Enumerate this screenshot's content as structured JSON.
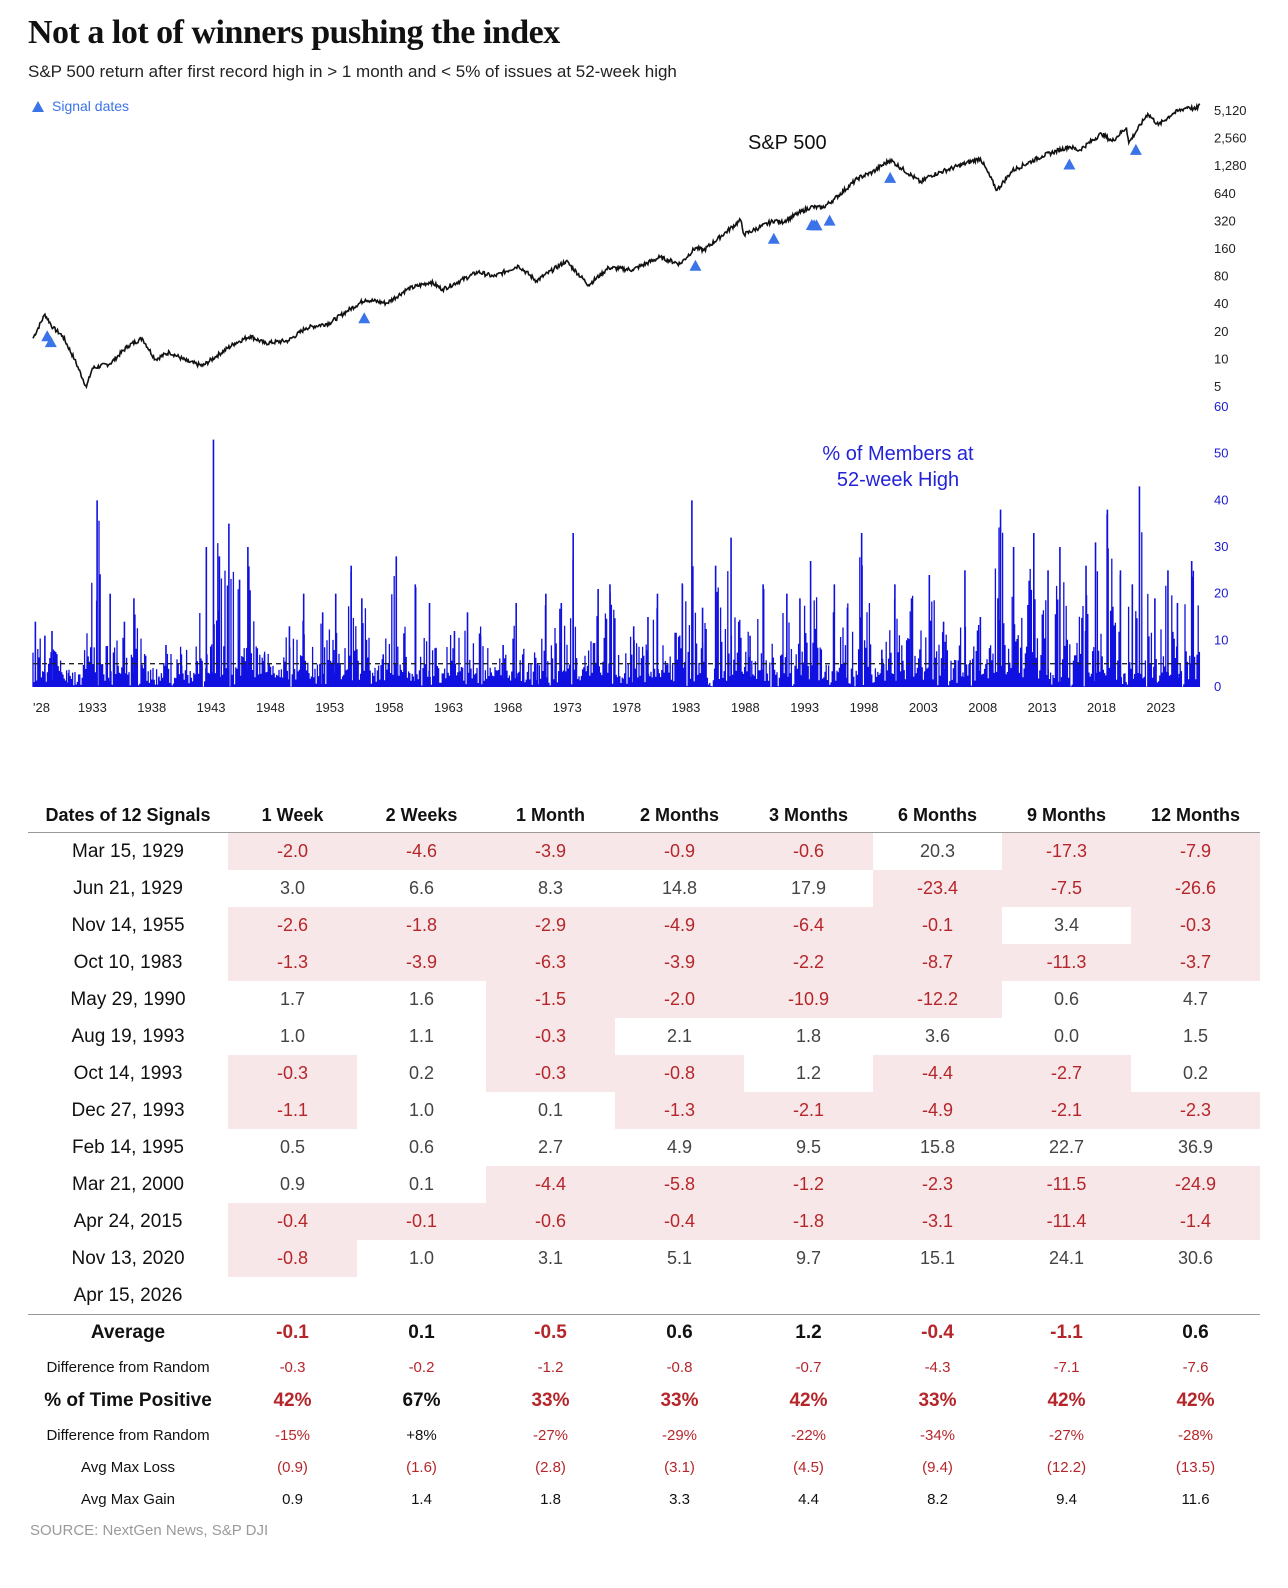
{
  "header": {
    "title": "Not a lot of winners pushing the index",
    "subtitle": "S&P 500 return after first record high in > 1 month and < 5% of issues at 52-week high",
    "legend_label": "Signal dates"
  },
  "colors": {
    "line": "#111111",
    "signal": "#3b73e8",
    "breadth": "#1010e0",
    "breadth_label": "#2323d9",
    "negative_text": "#b5262a",
    "negative_fill": "#f7e7e8"
  },
  "chart_data": [
    {
      "type": "line",
      "title": "S&P 500",
      "yscale": "log2",
      "y_ticks": [
        "5",
        "10",
        "20",
        "40",
        "80",
        "160",
        "320",
        "640",
        "1,280",
        "2,560",
        "5,120"
      ],
      "ylim": [
        5,
        5120
      ],
      "xlim": [
        1928,
        2026.3
      ],
      "series": [
        {
          "name": "S&P 500",
          "x": [
            1928.0,
            1929.0,
            1929.7,
            1930.5,
            1931.5,
            1932.5,
            1933.0,
            1934.5,
            1936.0,
            1937.2,
            1938.3,
            1939.5,
            1941.0,
            1942.3,
            1943.5,
            1945.0,
            1946.3,
            1947.5,
            1949.5,
            1951.0,
            1953.0,
            1954.5,
            1956.0,
            1957.8,
            1959.5,
            1961.5,
            1962.5,
            1965.5,
            1966.8,
            1968.9,
            1970.4,
            1972.9,
            1974.8,
            1976.5,
            1978.5,
            1980.8,
            1982.5,
            1983.8,
            1984.5,
            1987.6,
            1987.9,
            1990.5,
            1991.0,
            1993.5,
            1994.5,
            1995.5,
            1997.5,
            1998.7,
            2000.2,
            2002.8,
            2003.5,
            2007.8,
            2009.2,
            2010.5,
            2013.0,
            2015.3,
            2016.1,
            2018.0,
            2018.9,
            2020.1,
            2020.3,
            2021.9,
            2022.8,
            2024.0,
            2025.3,
            2025.9,
            2026.3
          ],
          "y": [
            17,
            31,
            22,
            18,
            10,
            5,
            8,
            9,
            14,
            17,
            10,
            12,
            9.5,
            8.5,
            11,
            15,
            18,
            15,
            16,
            22,
            25,
            34,
            45,
            41,
            58,
            70,
            58,
            90,
            80,
            105,
            72,
            118,
            65,
            100,
            95,
            130,
            110,
            165,
            155,
            330,
            230,
            330,
            310,
            460,
            450,
            560,
            950,
            1100,
            1500,
            850,
            1000,
            1560,
            700,
            1150,
            1650,
            2100,
            1900,
            2900,
            2400,
            3380,
            2300,
            4790,
            3600,
            4800,
            5700,
            5300,
            6000
          ]
        }
      ],
      "signal_dates": [
        1929.2,
        1929.5,
        1955.9,
        1983.8,
        1990.4,
        1993.6,
        1993.8,
        1994.0,
        1995.1,
        2000.2,
        2015.3,
        2020.9
      ]
    },
    {
      "type": "area",
      "title": "% of Members at 52-week High",
      "y_ticks": [
        "0",
        "10",
        "20",
        "30",
        "40",
        "50",
        "60"
      ],
      "ylim": [
        0,
        60
      ],
      "reference_line": 5,
      "x_ticks": [
        "'28",
        "1933",
        "1938",
        "1943",
        "1948",
        "1953",
        "1958",
        "1963",
        "1968",
        "1973",
        "1978",
        "1983",
        "1988",
        "1993",
        "1998",
        "2003",
        "2008",
        "2013",
        "2018",
        "2023"
      ],
      "series": [
        {
          "name": "% of Members at 52-week High",
          "x": [
            1928.2,
            1929.0,
            1929.6,
            1931.0,
            1933.4,
            1934.5,
            1935.7,
            1936.5,
            1938.6,
            1939.2,
            1940.5,
            1942.6,
            1943.2,
            1943.7,
            1944.5,
            1945.4,
            1946.1,
            1947.5,
            1949.6,
            1950.8,
            1952.4,
            1953.5,
            1954.8,
            1955.7,
            1957.5,
            1958.6,
            1960.2,
            1961.4,
            1963.5,
            1964.6,
            1965.7,
            1967.6,
            1968.7,
            1970.5,
            1971.2,
            1972.5,
            1973.5,
            1975.6,
            1976.6,
            1978.6,
            1979.8,
            1980.6,
            1982.7,
            1983.5,
            1984.4,
            1985.5,
            1986.8,
            1988.4,
            1989.5,
            1991.5,
            1992.6,
            1993.5,
            1995.5,
            1996.6,
            1997.8,
            1999.5,
            2000.6,
            2002.0,
            2003.5,
            2004.7,
            2006.5,
            2007.8,
            2009.5,
            2010.6,
            2012.3,
            2013.5,
            2014.5,
            2016.7,
            2017.5,
            2018.5,
            2019.6,
            2020.6,
            2021.2,
            2022.5,
            2023.6,
            2024.4,
            2025.6
          ],
          "y": [
            14,
            11,
            12,
            3,
            40,
            20,
            14,
            19,
            2,
            9,
            7,
            30,
            53,
            28,
            35,
            23,
            30,
            7,
            13,
            20,
            16,
            20,
            26,
            19,
            7,
            28,
            22,
            18,
            12,
            16,
            11,
            9,
            18,
            5,
            20,
            18,
            33,
            21,
            22,
            13,
            15,
            20,
            22,
            40,
            17,
            26,
            32,
            11,
            22,
            20,
            19,
            27,
            22,
            17,
            33,
            8,
            22,
            19,
            24,
            14,
            25,
            15,
            38,
            30,
            33,
            25,
            30,
            26,
            31,
            38,
            25,
            22,
            43,
            19,
            25,
            18,
            27
          ]
        }
      ]
    }
  ],
  "table": {
    "date_header": "Dates of 12 Signals",
    "columns": [
      "1 Week",
      "2 Weeks",
      "1 Month",
      "2 Months",
      "3 Months",
      "6 Months",
      "9 Months",
      "12 Months"
    ],
    "rows": [
      {
        "date": "Mar 15, 1929",
        "values": [
          "-2.0",
          "-4.6",
          "-3.9",
          "-0.9",
          "-0.6",
          "20.3",
          "-17.3",
          "-7.9"
        ]
      },
      {
        "date": "Jun 21, 1929",
        "values": [
          "3.0",
          "6.6",
          "8.3",
          "14.8",
          "17.9",
          "-23.4",
          "-7.5",
          "-26.6"
        ]
      },
      {
        "date": "Nov 14, 1955",
        "values": [
          "-2.6",
          "-1.8",
          "-2.9",
          "-4.9",
          "-6.4",
          "-0.1",
          "3.4",
          "-0.3"
        ]
      },
      {
        "date": "Oct 10, 1983",
        "values": [
          "-1.3",
          "-3.9",
          "-6.3",
          "-3.9",
          "-2.2",
          "-8.7",
          "-11.3",
          "-3.7"
        ]
      },
      {
        "date": "May 29, 1990",
        "values": [
          "1.7",
          "1.6",
          "-1.5",
          "-2.0",
          "-10.9",
          "-12.2",
          "0.6",
          "4.7"
        ]
      },
      {
        "date": "Aug 19, 1993",
        "values": [
          "1.0",
          "1.1",
          "-0.3",
          "2.1",
          "1.8",
          "3.6",
          "0.0",
          "1.5"
        ]
      },
      {
        "date": "Oct 14, 1993",
        "values": [
          "-0.3",
          "0.2",
          "-0.3",
          "-0.8",
          "1.2",
          "-4.4",
          "-2.7",
          "0.2"
        ]
      },
      {
        "date": "Dec 27, 1993",
        "values": [
          "-1.1",
          "1.0",
          "0.1",
          "-1.3",
          "-2.1",
          "-4.9",
          "-2.1",
          "-2.3"
        ]
      },
      {
        "date": "Feb 14, 1995",
        "values": [
          "0.5",
          "0.6",
          "2.7",
          "4.9",
          "9.5",
          "15.8",
          "22.7",
          "36.9"
        ]
      },
      {
        "date": "Mar 21, 2000",
        "values": [
          "0.9",
          "0.1",
          "-4.4",
          "-5.8",
          "-1.2",
          "-2.3",
          "-11.5",
          "-24.9"
        ]
      },
      {
        "date": "Apr 24, 2015",
        "values": [
          "-0.4",
          "-0.1",
          "-0.6",
          "-0.4",
          "-1.8",
          "-3.1",
          "-11.4",
          "-1.4"
        ]
      },
      {
        "date": "Nov 13, 2020",
        "values": [
          "-0.8",
          "1.0",
          "3.1",
          "5.1",
          "9.7",
          "15.1",
          "24.1",
          "30.6"
        ]
      },
      {
        "date": "Apr 15, 2026",
        "values": [
          "",
          "",
          "",
          "",
          "",
          "",
          "",
          ""
        ]
      }
    ],
    "summary": [
      {
        "label": "Average",
        "style": "bold",
        "values": [
          "-0.1",
          "0.1",
          "-0.5",
          "0.6",
          "1.2",
          "-0.4",
          "-1.1",
          "0.6"
        ],
        "red": [
          true,
          false,
          true,
          false,
          false,
          true,
          true,
          false
        ]
      },
      {
        "label": "Difference from Random",
        "style": "small",
        "values": [
          "-0.3",
          "-0.2",
          "-1.2",
          "-0.8",
          "-0.7",
          "-4.3",
          "-7.1",
          "-7.6"
        ],
        "red": [
          true,
          true,
          true,
          true,
          true,
          true,
          true,
          true
        ]
      },
      {
        "label": "% of Time Positive",
        "style": "bold",
        "values": [
          "42%",
          "67%",
          "33%",
          "33%",
          "42%",
          "33%",
          "42%",
          "42%"
        ],
        "red": [
          true,
          false,
          true,
          true,
          true,
          true,
          true,
          true
        ]
      },
      {
        "label": "Difference from Random",
        "style": "small",
        "values": [
          "-15%",
          "+8%",
          "-27%",
          "-29%",
          "-22%",
          "-34%",
          "-27%",
          "-28%"
        ],
        "red": [
          true,
          false,
          true,
          true,
          true,
          true,
          true,
          true
        ]
      },
      {
        "label": "Avg Max Loss",
        "style": "small",
        "values": [
          "(0.9)",
          "(1.6)",
          "(2.8)",
          "(3.1)",
          "(4.5)",
          "(9.4)",
          "(12.2)",
          "(13.5)"
        ],
        "red": [
          true,
          true,
          true,
          true,
          true,
          true,
          true,
          true
        ]
      },
      {
        "label": "Avg Max Gain",
        "style": "small",
        "values": [
          "0.9",
          "1.4",
          "1.8",
          "3.3",
          "4.4",
          "8.2",
          "9.4",
          "11.6"
        ],
        "red": [
          false,
          false,
          false,
          false,
          false,
          false,
          false,
          false
        ]
      }
    ]
  },
  "footer": {
    "source": "SOURCE: NextGen News, S&P DJI"
  }
}
